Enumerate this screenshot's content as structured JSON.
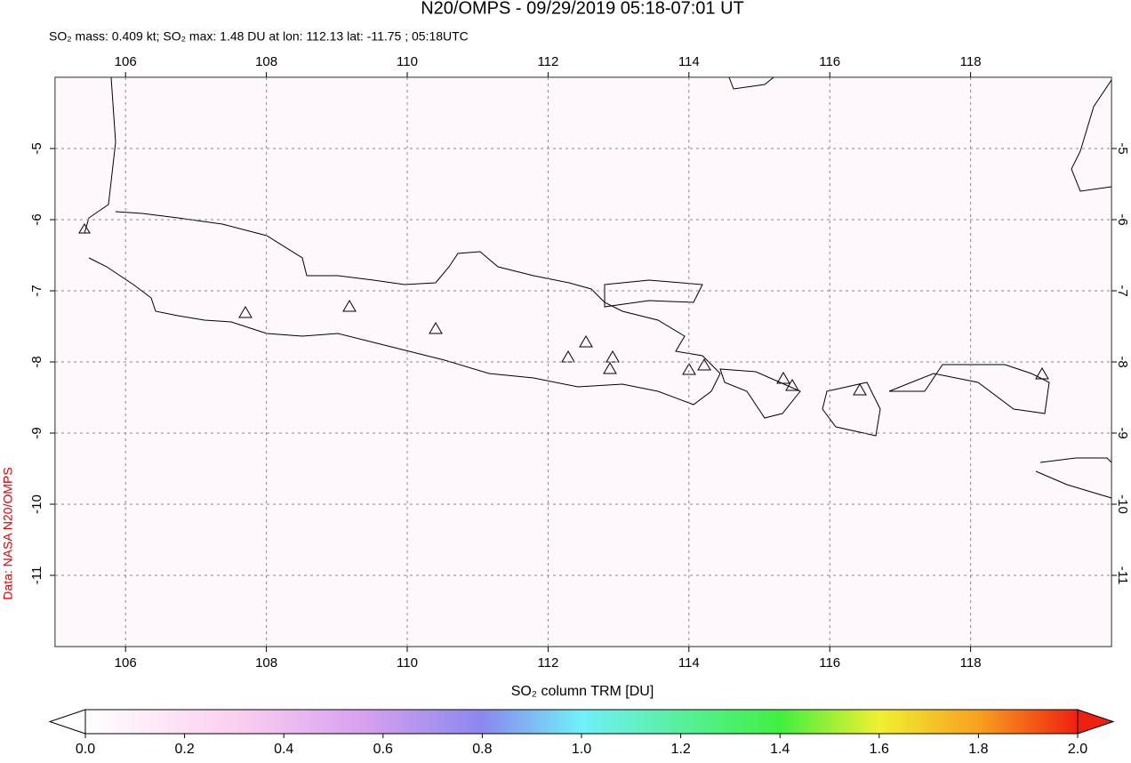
{
  "chart_data": {
    "type": "map",
    "title": "N20/OMPS - 09/29/2019 05:18-07:01 UT",
    "subtitle": "SO₂ mass: 0.409 kt; SO₂ max: 1.48 DU at lon: 112.13 lat: -11.75 ; 05:18UTC",
    "credit": "Data: NASA N20/OMPS",
    "colorbar_label": "SO₂ column TRM [DU]",
    "xlim": [
      105,
      120
    ],
    "xticks": [
      106,
      108,
      110,
      112,
      114,
      116,
      118
    ],
    "ylim": [
      -12,
      -4
    ],
    "yticks": [
      -5,
      -6,
      -7,
      -8,
      -9,
      -10,
      -11
    ],
    "grid": true,
    "colorbar_lim": [
      0,
      2
    ],
    "colorbar_ticks": [
      {
        "value": 0,
        "label": "0.0"
      },
      {
        "value": 0.2,
        "label": "0.2"
      },
      {
        "value": 0.4,
        "label": "0.4"
      },
      {
        "value": 0.6,
        "label": "0.6"
      },
      {
        "value": 0.8,
        "label": "0.8"
      },
      {
        "value": 1,
        "label": "1.0"
      },
      {
        "value": 1.2,
        "label": "1.2"
      },
      {
        "value": 1.4,
        "label": "1.4"
      },
      {
        "value": 1.6,
        "label": "1.6"
      },
      {
        "value": 1.8,
        "label": "1.8"
      },
      {
        "value": 2,
        "label": "2.0"
      }
    ]
  }
}
